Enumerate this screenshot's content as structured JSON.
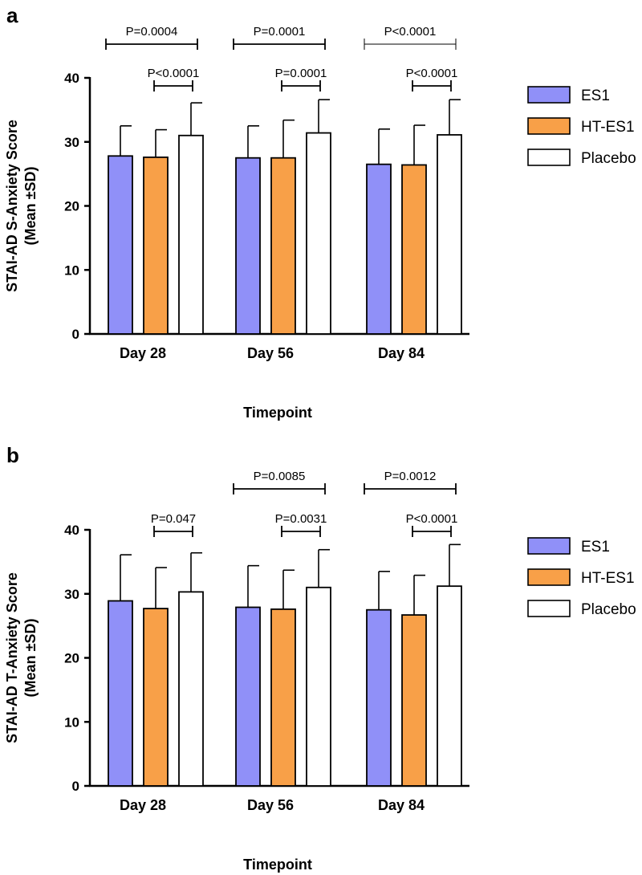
{
  "figure": {
    "colors": {
      "ES1": "#9090f8",
      "HT-ES1": "#f8a048",
      "Placebo": "#ffffff",
      "axis": "#000000"
    },
    "legend_order": [
      "ES1",
      "HT-ES1",
      "Placebo"
    ]
  },
  "chart_data": [
    {
      "type": "bar",
      "panel": "a",
      "title": "",
      "xlabel": "Timepoint",
      "ylabel_line1": "STAI-AD S-Anxiety Score",
      "ylabel_line2": "(Mean ±SD)",
      "ylim": [
        0,
        40
      ],
      "yticks": [
        0,
        10,
        20,
        30,
        40
      ],
      "categories": [
        "Day 28",
        "Day 56",
        "Day 84"
      ],
      "series": [
        {
          "name": "ES1",
          "values": [
            27.8,
            27.5,
            26.5
          ],
          "sd": [
            4.7,
            5.0,
            5.5
          ]
        },
        {
          "name": "HT-ES1",
          "values": [
            27.6,
            27.5,
            26.4
          ],
          "sd": [
            4.3,
            5.9,
            6.2
          ]
        },
        {
          "name": "Placebo",
          "values": [
            31.0,
            31.4,
            31.1
          ],
          "sd": [
            5.1,
            5.2,
            5.5
          ]
        }
      ],
      "comparisons": [
        {
          "category": 0,
          "from": "ES1",
          "to": "Placebo",
          "level": 2,
          "label": "P=0.0004"
        },
        {
          "category": 0,
          "from": "HT-ES1",
          "to": "Placebo",
          "level": 1,
          "label": "P<0.0001"
        },
        {
          "category": 1,
          "from": "ES1",
          "to": "Placebo",
          "level": 2,
          "label": "P=0.0001"
        },
        {
          "category": 1,
          "from": "HT-ES1",
          "to": "Placebo",
          "level": 1,
          "label": "P=0.0001"
        },
        {
          "category": 2,
          "from": "ES1",
          "to": "Placebo",
          "level": 2,
          "label": "P<0.0001",
          "thin": true
        },
        {
          "category": 2,
          "from": "HT-ES1",
          "to": "Placebo",
          "level": 1,
          "label": "P<0.0001"
        }
      ],
      "legend": [
        "ES1",
        "HT-ES1",
        "Placebo"
      ]
    },
    {
      "type": "bar",
      "panel": "b",
      "title": "",
      "xlabel": "Timepoint",
      "ylabel_line1": "STAI-AD T-Anxiety Score",
      "ylabel_line2": "(Mean ±SD)",
      "ylim": [
        0,
        40
      ],
      "yticks": [
        0,
        10,
        20,
        30,
        40
      ],
      "categories": [
        "Day 28",
        "Day 56",
        "Day 84"
      ],
      "series": [
        {
          "name": "ES1",
          "values": [
            28.9,
            27.9,
            27.5
          ],
          "sd": [
            7.2,
            6.5,
            6.0
          ]
        },
        {
          "name": "HT-ES1",
          "values": [
            27.7,
            27.6,
            26.7
          ],
          "sd": [
            6.4,
            6.1,
            6.2
          ]
        },
        {
          "name": "Placebo",
          "values": [
            30.3,
            31.0,
            31.2
          ],
          "sd": [
            6.1,
            5.9,
            6.5
          ]
        }
      ],
      "comparisons": [
        {
          "category": 0,
          "from": "HT-ES1",
          "to": "Placebo",
          "level": 1,
          "label": "P=0.047"
        },
        {
          "category": 1,
          "from": "ES1",
          "to": "Placebo",
          "level": 2,
          "label": "P=0.0085"
        },
        {
          "category": 1,
          "from": "HT-ES1",
          "to": "Placebo",
          "level": 1,
          "label": "P=0.0031"
        },
        {
          "category": 2,
          "from": "ES1",
          "to": "Placebo",
          "level": 2,
          "label": "P=0.0012"
        },
        {
          "category": 2,
          "from": "HT-ES1",
          "to": "Placebo",
          "level": 1,
          "label": "P<0.0001"
        }
      ],
      "legend": [
        "ES1",
        "HT-ES1",
        "Placebo"
      ]
    }
  ]
}
